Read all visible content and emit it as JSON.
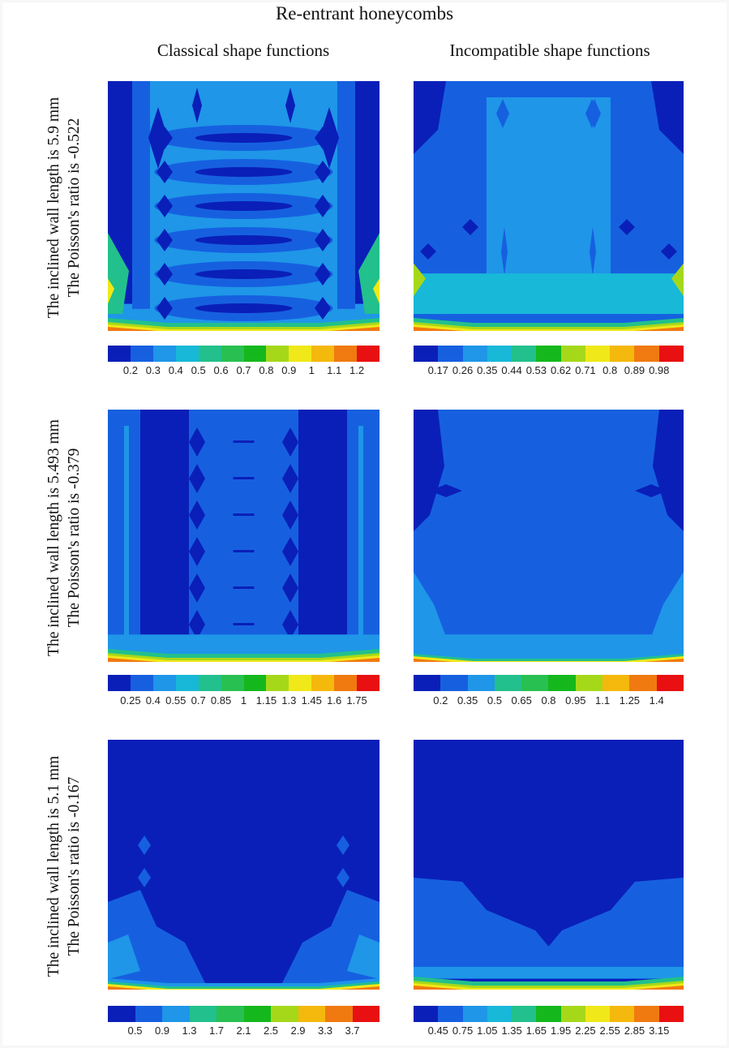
{
  "title": "Re-entrant honeycombs",
  "columns": [
    "Classical shape functions",
    "Incompatible shape functions"
  ],
  "rows": [
    {
      "label_line1": "The inclined wall length is 5.9 mm",
      "label_line2": "The Poisson's ratio is -0.522"
    },
    {
      "label_line1": "The inclined wall length is 5.493 mm",
      "label_line2": "The Poisson's ratio is -0.379"
    },
    {
      "label_line1": "The inclined wall length is 5.1 mm",
      "label_line2": "The Poisson's ratio is -0.167"
    }
  ],
  "colormap": [
    "#0a1fb8",
    "#1660e0",
    "#1f96e8",
    "#18b8d8",
    "#22c08c",
    "#28c050",
    "#14b81c",
    "#a6d81a",
    "#f0e818",
    "#f5b80c",
    "#f07a10",
    "#e81010"
  ],
  "chart_data": [
    {
      "type": "heatmap",
      "row": 0,
      "column": "Classical shape functions",
      "colorbar_ticks": [
        "0.2",
        "0.3",
        "0.4",
        "0.5",
        "0.6",
        "0.7",
        "0.8",
        "0.9",
        "1",
        "1.1",
        "1.2"
      ],
      "colorbar_bins": 12
    },
    {
      "type": "heatmap",
      "row": 0,
      "column": "Incompatible shape functions",
      "colorbar_ticks": [
        "0.17",
        "0.26",
        "0.35",
        "0.44",
        "0.53",
        "0.62",
        "0.71",
        "0.8",
        "0.89",
        "0.98"
      ],
      "colorbar_bins": 11
    },
    {
      "type": "heatmap",
      "row": 1,
      "column": "Classical shape functions",
      "colorbar_ticks": [
        "0.25",
        "0.4",
        "0.55",
        "0.7",
        "0.85",
        "1",
        "1.15",
        "1.3",
        "1.45",
        "1.6",
        "1.75"
      ],
      "colorbar_bins": 12
    },
    {
      "type": "heatmap",
      "row": 1,
      "column": "Incompatible shape functions",
      "colorbar_ticks": [
        "0.2",
        "0.35",
        "0.5",
        "0.65",
        "0.8",
        "0.95",
        "1.1",
        "1.25",
        "1.4"
      ],
      "colorbar_bins": 10
    },
    {
      "type": "heatmap",
      "row": 2,
      "column": "Classical shape functions",
      "colorbar_ticks": [
        "0.5",
        "0.9",
        "1.3",
        "1.7",
        "2.1",
        "2.5",
        "2.9",
        "3.3",
        "3.7"
      ],
      "colorbar_bins": 10
    },
    {
      "type": "heatmap",
      "row": 2,
      "column": "Incompatible shape functions",
      "colorbar_ticks": [
        "0.45",
        "0.75",
        "1.05",
        "1.35",
        "1.65",
        "1.95",
        "2.25",
        "2.55",
        "2.85",
        "3.15"
      ],
      "colorbar_bins": 11
    }
  ]
}
